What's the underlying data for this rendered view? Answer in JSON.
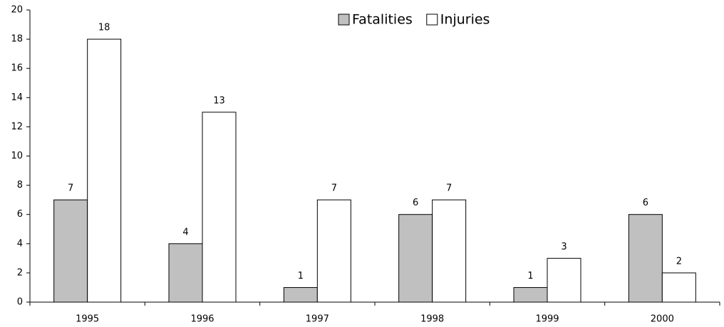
{
  "chart_data": {
    "type": "bar",
    "categories": [
      "1995",
      "1996",
      "1997",
      "1998",
      "1999",
      "2000"
    ],
    "series": [
      {
        "name": "Fatalities",
        "color": "#c0c0c0",
        "values": [
          7,
          4,
          1,
          6,
          1,
          6
        ]
      },
      {
        "name": "Injuries",
        "color": "#ffffff",
        "values": [
          18,
          13,
          7,
          7,
          3,
          2
        ]
      }
    ],
    "ylim": [
      0,
      20
    ],
    "yticks": [
      0,
      2,
      4,
      6,
      8,
      10,
      12,
      14,
      16,
      18,
      20
    ],
    "grid": false,
    "legend": "top"
  }
}
